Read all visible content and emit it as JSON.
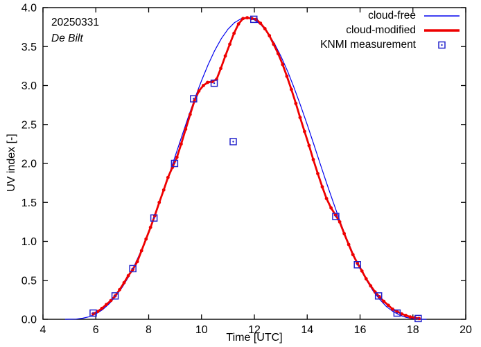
{
  "chart_data": {
    "type": "line",
    "title": "",
    "xlabel": "Time [UTC]",
    "ylabel": "UV index [-]",
    "xlim": [
      4,
      20
    ],
    "ylim": [
      0,
      4
    ],
    "xticks": [
      4,
      6,
      8,
      10,
      12,
      14,
      16,
      18,
      20
    ],
    "yticks": [
      0.0,
      0.5,
      1.0,
      1.5,
      2.0,
      2.5,
      3.0,
      3.5,
      4.0
    ],
    "ytick_labels": [
      "0.0",
      "0.5",
      "1.0",
      "1.5",
      "2.0",
      "2.5",
      "3.0",
      "3.5",
      "4.0"
    ],
    "legend_position": "top-right-inside",
    "grid": false,
    "annotations": {
      "date": "20250331",
      "station": "De Bilt"
    },
    "colors": {
      "cloud_free": "#0000ee",
      "cloud_modified": "#ee0000",
      "knmi": "#2222cc",
      "axis": "#000000"
    },
    "series": [
      {
        "name": "cloud-free",
        "type": "line",
        "color": "#0000ee",
        "width": 1.2,
        "points": [
          [
            4.85,
            0.0
          ],
          [
            5.0,
            0.001
          ],
          [
            5.25,
            0.003
          ],
          [
            5.5,
            0.013
          ],
          [
            5.75,
            0.033
          ],
          [
            6.0,
            0.069
          ],
          [
            6.25,
            0.122
          ],
          [
            6.5,
            0.197
          ],
          [
            6.75,
            0.293
          ],
          [
            7.0,
            0.411
          ],
          [
            7.25,
            0.55
          ],
          [
            7.5,
            0.718
          ],
          [
            7.75,
            0.909
          ],
          [
            8.0,
            1.12
          ],
          [
            8.25,
            1.346
          ],
          [
            8.5,
            1.586
          ],
          [
            8.75,
            1.834
          ],
          [
            9.0,
            2.089
          ],
          [
            9.25,
            2.346
          ],
          [
            9.5,
            2.597
          ],
          [
            9.75,
            2.838
          ],
          [
            10.0,
            3.063
          ],
          [
            10.25,
            3.268
          ],
          [
            10.5,
            3.45
          ],
          [
            10.75,
            3.602
          ],
          [
            11.0,
            3.723
          ],
          [
            11.25,
            3.808
          ],
          [
            11.5,
            3.858
          ],
          [
            11.7,
            3.87
          ],
          [
            12.0,
            3.843
          ],
          [
            12.25,
            3.779
          ],
          [
            12.5,
            3.678
          ],
          [
            12.75,
            3.545
          ],
          [
            13.0,
            3.38
          ],
          [
            13.25,
            3.189
          ],
          [
            13.5,
            2.974
          ],
          [
            13.75,
            2.743
          ],
          [
            14.0,
            2.497
          ],
          [
            14.25,
            2.244
          ],
          [
            14.5,
            1.987
          ],
          [
            14.75,
            1.733
          ],
          [
            15.0,
            1.487
          ],
          [
            15.25,
            1.251
          ],
          [
            15.5,
            1.032
          ],
          [
            15.75,
            0.832
          ],
          [
            16.0,
            0.653
          ],
          [
            16.25,
            0.496
          ],
          [
            16.5,
            0.361
          ],
          [
            16.75,
            0.252
          ],
          [
            17.0,
            0.163
          ],
          [
            17.25,
            0.099
          ],
          [
            17.5,
            0.053
          ],
          [
            17.75,
            0.024
          ],
          [
            18.0,
            0.008
          ],
          [
            18.25,
            0.001
          ],
          [
            18.5,
            0.0
          ]
        ]
      },
      {
        "name": "cloud-modified",
        "type": "line+dots",
        "color": "#ee0000",
        "width": 2.8,
        "points": [
          [
            5.9,
            0.07
          ],
          [
            6.07,
            0.1
          ],
          [
            6.23,
            0.14
          ],
          [
            6.4,
            0.19
          ],
          [
            6.57,
            0.24
          ],
          [
            6.73,
            0.3
          ],
          [
            6.9,
            0.38
          ],
          [
            7.07,
            0.47
          ],
          [
            7.23,
            0.56
          ],
          [
            7.4,
            0.64
          ],
          [
            7.57,
            0.74
          ],
          [
            7.73,
            0.88
          ],
          [
            7.9,
            1.03
          ],
          [
            8.07,
            1.18
          ],
          [
            8.23,
            1.33
          ],
          [
            8.4,
            1.5
          ],
          [
            8.57,
            1.66
          ],
          [
            8.73,
            1.82
          ],
          [
            8.9,
            1.95
          ],
          [
            9.07,
            2.08
          ],
          [
            9.23,
            2.25
          ],
          [
            9.4,
            2.44
          ],
          [
            9.57,
            2.63
          ],
          [
            9.73,
            2.8
          ],
          [
            9.9,
            2.93
          ],
          [
            10.07,
            3.0
          ],
          [
            10.23,
            3.04
          ],
          [
            10.4,
            3.05
          ],
          [
            10.57,
            3.08
          ],
          [
            10.73,
            3.22
          ],
          [
            10.9,
            3.38
          ],
          [
            11.07,
            3.53
          ],
          [
            11.23,
            3.67
          ],
          [
            11.4,
            3.79
          ],
          [
            11.57,
            3.86
          ],
          [
            11.73,
            3.87
          ],
          [
            11.9,
            3.86
          ],
          [
            12.07,
            3.85
          ],
          [
            12.23,
            3.8
          ],
          [
            12.4,
            3.73
          ],
          [
            12.57,
            3.64
          ],
          [
            12.73,
            3.53
          ],
          [
            12.9,
            3.41
          ],
          [
            13.07,
            3.27
          ],
          [
            13.23,
            3.12
          ],
          [
            13.4,
            2.95
          ],
          [
            13.57,
            2.77
          ],
          [
            13.73,
            2.59
          ],
          [
            13.9,
            2.41
          ],
          [
            14.07,
            2.23
          ],
          [
            14.23,
            2.05
          ],
          [
            14.4,
            1.87
          ],
          [
            14.57,
            1.7
          ],
          [
            14.73,
            1.55
          ],
          [
            14.9,
            1.43
          ],
          [
            15.07,
            1.34
          ],
          [
            15.23,
            1.25
          ],
          [
            15.4,
            1.1
          ],
          [
            15.57,
            0.96
          ],
          [
            15.73,
            0.83
          ],
          [
            15.9,
            0.72
          ],
          [
            16.07,
            0.62
          ],
          [
            16.23,
            0.52
          ],
          [
            16.4,
            0.43
          ],
          [
            16.57,
            0.35
          ],
          [
            16.73,
            0.29
          ],
          [
            16.9,
            0.23
          ],
          [
            17.07,
            0.18
          ],
          [
            17.23,
            0.13
          ],
          [
            17.4,
            0.1
          ],
          [
            17.57,
            0.07
          ],
          [
            17.73,
            0.05
          ],
          [
            17.9,
            0.03
          ],
          [
            18.07,
            0.02
          ],
          [
            18.23,
            0.01
          ]
        ]
      },
      {
        "name": "KNMI measurement",
        "type": "scatter-open-square",
        "color": "#2222cc",
        "points": [
          [
            5.9,
            0.08
          ],
          [
            6.73,
            0.3
          ],
          [
            7.4,
            0.65
          ],
          [
            8.2,
            1.3
          ],
          [
            8.98,
            2.0
          ],
          [
            9.7,
            2.83
          ],
          [
            10.48,
            3.03
          ],
          [
            11.2,
            2.28
          ],
          [
            11.98,
            3.85
          ],
          [
            15.08,
            1.32
          ],
          [
            15.9,
            0.7
          ],
          [
            16.7,
            0.3
          ],
          [
            17.4,
            0.08
          ],
          [
            18.2,
            0.01
          ]
        ]
      }
    ]
  }
}
